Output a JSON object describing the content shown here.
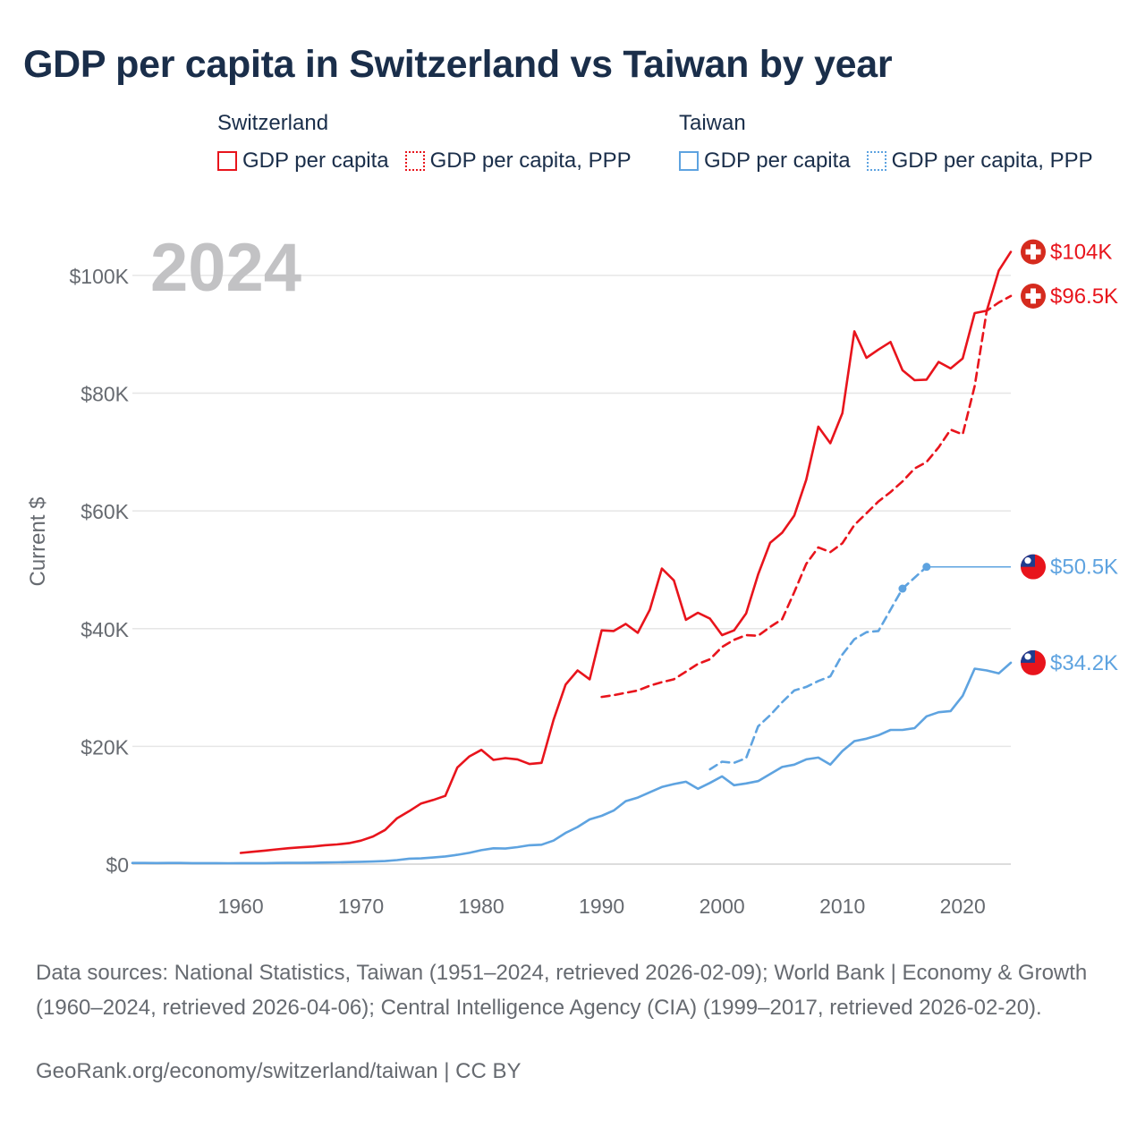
{
  "title": "GDP per capita in Switzerland vs Taiwan by year",
  "legend": {
    "switzerland": {
      "title": "Switzerland",
      "gdp": "GDP per capita",
      "ppp": "GDP per capita, PPP"
    },
    "taiwan": {
      "title": "Taiwan",
      "gdp": "GDP per capita",
      "ppp": "GDP per capita, PPP"
    }
  },
  "colors": {
    "switzerland": "#e8141c",
    "taiwan": "#5ea3e0",
    "year_watermark": "#c2c2c4",
    "grid": "#e6e6e6",
    "axis_text": "#666a70"
  },
  "chart_data": {
    "type": "line",
    "year_label": "2024",
    "ylabel": "Current $",
    "xlim": [
      1951,
      2024
    ],
    "ylim": [
      0,
      105000
    ],
    "yticks": [
      {
        "value": 0,
        "label": "$0"
      },
      {
        "value": 20000,
        "label": "$20K"
      },
      {
        "value": 40000,
        "label": "$40K"
      },
      {
        "value": 60000,
        "label": "$60K"
      },
      {
        "value": 80000,
        "label": "$80K"
      },
      {
        "value": 100000,
        "label": "$100K"
      }
    ],
    "xticks": [
      {
        "value": 1960,
        "label": "1960"
      },
      {
        "value": 1970,
        "label": "1970"
      },
      {
        "value": 1980,
        "label": "1980"
      },
      {
        "value": 1990,
        "label": "1990"
      },
      {
        "value": 2000,
        "label": "2000"
      },
      {
        "value": 2010,
        "label": "2010"
      },
      {
        "value": 2020,
        "label": "2020"
      }
    ],
    "series": [
      {
        "name": "Switzerland GDP per capita",
        "country": "switzerland",
        "style": "solid",
        "end_label": "$104K",
        "flag": "switzerland-flag",
        "points": [
          [
            1960,
            1900
          ],
          [
            1961,
            2100
          ],
          [
            1962,
            2300
          ],
          [
            1963,
            2500
          ],
          [
            1964,
            2700
          ],
          [
            1965,
            2850
          ],
          [
            1966,
            3000
          ],
          [
            1967,
            3200
          ],
          [
            1968,
            3350
          ],
          [
            1969,
            3550
          ],
          [
            1970,
            4000
          ],
          [
            1971,
            4700
          ],
          [
            1972,
            5800
          ],
          [
            1973,
            7800
          ],
          [
            1974,
            9000
          ],
          [
            1975,
            10300
          ],
          [
            1976,
            10900
          ],
          [
            1977,
            11600
          ],
          [
            1978,
            16400
          ],
          [
            1979,
            18300
          ],
          [
            1980,
            19400
          ],
          [
            1981,
            17700
          ],
          [
            1982,
            18000
          ],
          [
            1983,
            17800
          ],
          [
            1984,
            17000
          ],
          [
            1985,
            17200
          ],
          [
            1986,
            24500
          ],
          [
            1987,
            30500
          ],
          [
            1988,
            32900
          ],
          [
            1989,
            31400
          ],
          [
            1990,
            39700
          ],
          [
            1991,
            39600
          ],
          [
            1992,
            40800
          ],
          [
            1993,
            39300
          ],
          [
            1994,
            43200
          ],
          [
            1995,
            50200
          ],
          [
            1996,
            48200
          ],
          [
            1997,
            41500
          ],
          [
            1998,
            42700
          ],
          [
            1999,
            41700
          ],
          [
            2000,
            38900
          ],
          [
            2001,
            39700
          ],
          [
            2002,
            42600
          ],
          [
            2003,
            49200
          ],
          [
            2004,
            54600
          ],
          [
            2005,
            56300
          ],
          [
            2006,
            59200
          ],
          [
            2007,
            65300
          ],
          [
            2008,
            74300
          ],
          [
            2009,
            71500
          ],
          [
            2010,
            76600
          ],
          [
            2011,
            90500
          ],
          [
            2012,
            86000
          ],
          [
            2013,
            87400
          ],
          [
            2014,
            88700
          ],
          [
            2015,
            83900
          ],
          [
            2016,
            82200
          ],
          [
            2017,
            82300
          ],
          [
            2018,
            85300
          ],
          [
            2019,
            84200
          ],
          [
            2020,
            85900
          ],
          [
            2021,
            93600
          ],
          [
            2022,
            94000
          ],
          [
            2023,
            100800
          ],
          [
            2024,
            104000
          ]
        ]
      },
      {
        "name": "Switzerland GDP per capita, PPP",
        "country": "switzerland",
        "style": "dashed",
        "end_label": "$96.5K",
        "flag": "switzerland-flag",
        "points": [
          [
            1990,
            28400
          ],
          [
            1991,
            28700
          ],
          [
            1992,
            29100
          ],
          [
            1993,
            29500
          ],
          [
            1994,
            30300
          ],
          [
            1995,
            30900
          ],
          [
            1996,
            31400
          ],
          [
            1997,
            32700
          ],
          [
            1998,
            34000
          ],
          [
            1999,
            34800
          ],
          [
            2000,
            36900
          ],
          [
            2001,
            38100
          ],
          [
            2002,
            38900
          ],
          [
            2003,
            38800
          ],
          [
            2004,
            40300
          ],
          [
            2005,
            41600
          ],
          [
            2006,
            46200
          ],
          [
            2007,
            51000
          ],
          [
            2008,
            53800
          ],
          [
            2009,
            53000
          ],
          [
            2010,
            54500
          ],
          [
            2011,
            57600
          ],
          [
            2012,
            59600
          ],
          [
            2013,
            61600
          ],
          [
            2014,
            63200
          ],
          [
            2015,
            65000
          ],
          [
            2016,
            67200
          ],
          [
            2017,
            68300
          ],
          [
            2018,
            70800
          ],
          [
            2019,
            73800
          ],
          [
            2020,
            73000
          ],
          [
            2021,
            81200
          ],
          [
            2022,
            94000
          ],
          [
            2023,
            95400
          ],
          [
            2024,
            96500
          ]
        ]
      },
      {
        "name": "Taiwan GDP per capita",
        "country": "taiwan",
        "style": "solid",
        "end_label": "$34.2K",
        "flag": "taiwan-flag",
        "points": [
          [
            1951,
            200
          ],
          [
            1952,
            200
          ],
          [
            1953,
            180
          ],
          [
            1954,
            190
          ],
          [
            1955,
            200
          ],
          [
            1956,
            170
          ],
          [
            1957,
            170
          ],
          [
            1958,
            170
          ],
          [
            1959,
            150
          ],
          [
            1960,
            160
          ],
          [
            1961,
            160
          ],
          [
            1962,
            170
          ],
          [
            1963,
            190
          ],
          [
            1964,
            210
          ],
          [
            1965,
            220
          ],
          [
            1966,
            240
          ],
          [
            1967,
            270
          ],
          [
            1968,
            310
          ],
          [
            1969,
            350
          ],
          [
            1970,
            390
          ],
          [
            1971,
            440
          ],
          [
            1972,
            520
          ],
          [
            1973,
            690
          ],
          [
            1974,
            920
          ],
          [
            1975,
            970
          ],
          [
            1976,
            1130
          ],
          [
            1977,
            1300
          ],
          [
            1978,
            1580
          ],
          [
            1979,
            1920
          ],
          [
            1980,
            2370
          ],
          [
            1981,
            2690
          ],
          [
            1982,
            2650
          ],
          [
            1983,
            2880
          ],
          [
            1984,
            3200
          ],
          [
            1985,
            3300
          ],
          [
            1986,
            4000
          ],
          [
            1987,
            5300
          ],
          [
            1988,
            6300
          ],
          [
            1989,
            7600
          ],
          [
            1990,
            8200
          ],
          [
            1991,
            9100
          ],
          [
            1992,
            10700
          ],
          [
            1993,
            11300
          ],
          [
            1994,
            12200
          ],
          [
            1995,
            13100
          ],
          [
            1996,
            13600
          ],
          [
            1997,
            14000
          ],
          [
            1998,
            12800
          ],
          [
            1999,
            13800
          ],
          [
            2000,
            14900
          ],
          [
            2001,
            13400
          ],
          [
            2002,
            13700
          ],
          [
            2003,
            14100
          ],
          [
            2004,
            15300
          ],
          [
            2005,
            16500
          ],
          [
            2006,
            16900
          ],
          [
            2007,
            17800
          ],
          [
            2008,
            18100
          ],
          [
            2009,
            16900
          ],
          [
            2010,
            19200
          ],
          [
            2011,
            20900
          ],
          [
            2012,
            21300
          ],
          [
            2013,
            21900
          ],
          [
            2014,
            22800
          ],
          [
            2015,
            22800
          ],
          [
            2016,
            23100
          ],
          [
            2017,
            25100
          ],
          [
            2018,
            25800
          ],
          [
            2019,
            26000
          ],
          [
            2020,
            28600
          ],
          [
            2021,
            33200
          ],
          [
            2022,
            32900
          ],
          [
            2023,
            32400
          ],
          [
            2024,
            34200
          ]
        ]
      },
      {
        "name": "Taiwan GDP per capita, PPP",
        "country": "taiwan",
        "style": "dashed",
        "end_label": "$50.5K",
        "flag": "taiwan-flag",
        "points": [
          [
            1999,
            16100
          ],
          [
            2000,
            17400
          ],
          [
            2001,
            17200
          ],
          [
            2002,
            18000
          ],
          [
            2003,
            23400
          ],
          [
            2004,
            25300
          ],
          [
            2005,
            27500
          ],
          [
            2006,
            29500
          ],
          [
            2007,
            30100
          ],
          [
            2008,
            31100
          ],
          [
            2009,
            31900
          ],
          [
            2010,
            35600
          ],
          [
            2011,
            38200
          ],
          [
            2012,
            39400
          ],
          [
            2013,
            39600
          ],
          [
            2015,
            46800
          ],
          [
            2017,
            50500
          ]
        ],
        "markers": [
          [
            2015,
            46800
          ],
          [
            2017,
            50500
          ]
        ],
        "carry_forward": [
          [
            2017,
            50500
          ],
          [
            2024,
            50500
          ]
        ]
      }
    ]
  },
  "sources": "Data sources: National Statistics, Taiwan (1951–2024, retrieved 2026-02-09); World Bank | Economy & Growth (1960–2024, retrieved 2026-04-06); Central Intelligence Agency (CIA) (1999–2017, retrieved 2026-02-20).",
  "credit": "GeoRank.org/economy/switzerland/taiwan | CC BY"
}
